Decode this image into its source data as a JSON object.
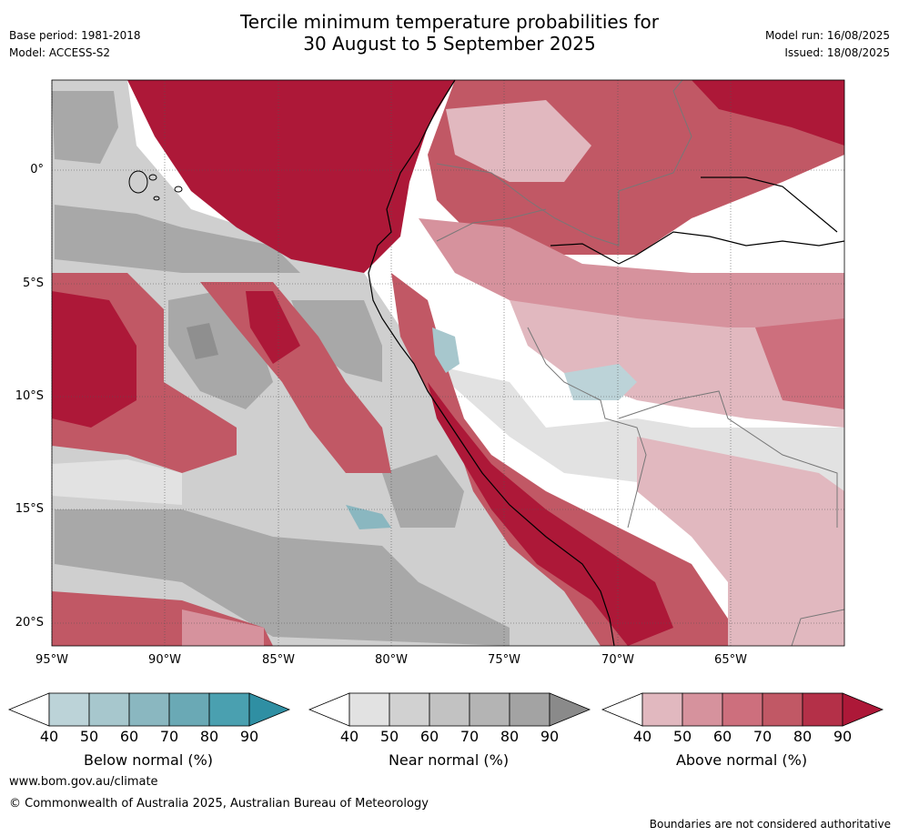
{
  "header": {
    "title_line1": "Tercile minimum temperature probabilities for",
    "title_line2": "30 August to 5 September 2025",
    "base_period": "Base period: 1981-2018",
    "model": "Model: ACCESS-S2",
    "model_run": "Model run: 16/08/2025",
    "issued": "Issued: 18/08/2025"
  },
  "axes": {
    "lat_labels": [
      "0°",
      "5°S",
      "10°S",
      "15°S",
      "20°S"
    ],
    "lon_labels": [
      "95°W",
      "90°W",
      "85°W",
      "80°W",
      "75°W",
      "70°W",
      "65°W"
    ]
  },
  "colorbars": {
    "ticks": [
      "40",
      "50",
      "60",
      "70",
      "80",
      "90"
    ],
    "below": {
      "label": "Below normal (%)",
      "colors": [
        "#ffffff",
        "#bcd3d8",
        "#a7c7cd",
        "#8ab7c0",
        "#6aa9b5",
        "#4aa0b0",
        "#2f8fa3"
      ]
    },
    "near": {
      "label": "Near normal (%)",
      "colors": [
        "#ffffff",
        "#e2e2e2",
        "#d1d1d1",
        "#c2c2c2",
        "#b4b4b4",
        "#a3a3a3",
        "#8a8a8a"
      ]
    },
    "above": {
      "label": "Above normal (%)",
      "colors": [
        "#ffffff",
        "#e1b8bf",
        "#d6929d",
        "#cd6f7d",
        "#c15865",
        "#b43048",
        "#ad1838"
      ]
    }
  },
  "footer": {
    "website": "www.bom.gov.au/climate",
    "copyright": "© Commonwealth of Australia 2025, Australian Bureau of Meteorology",
    "disclaimer": "Boundaries are not considered authoritative"
  }
}
